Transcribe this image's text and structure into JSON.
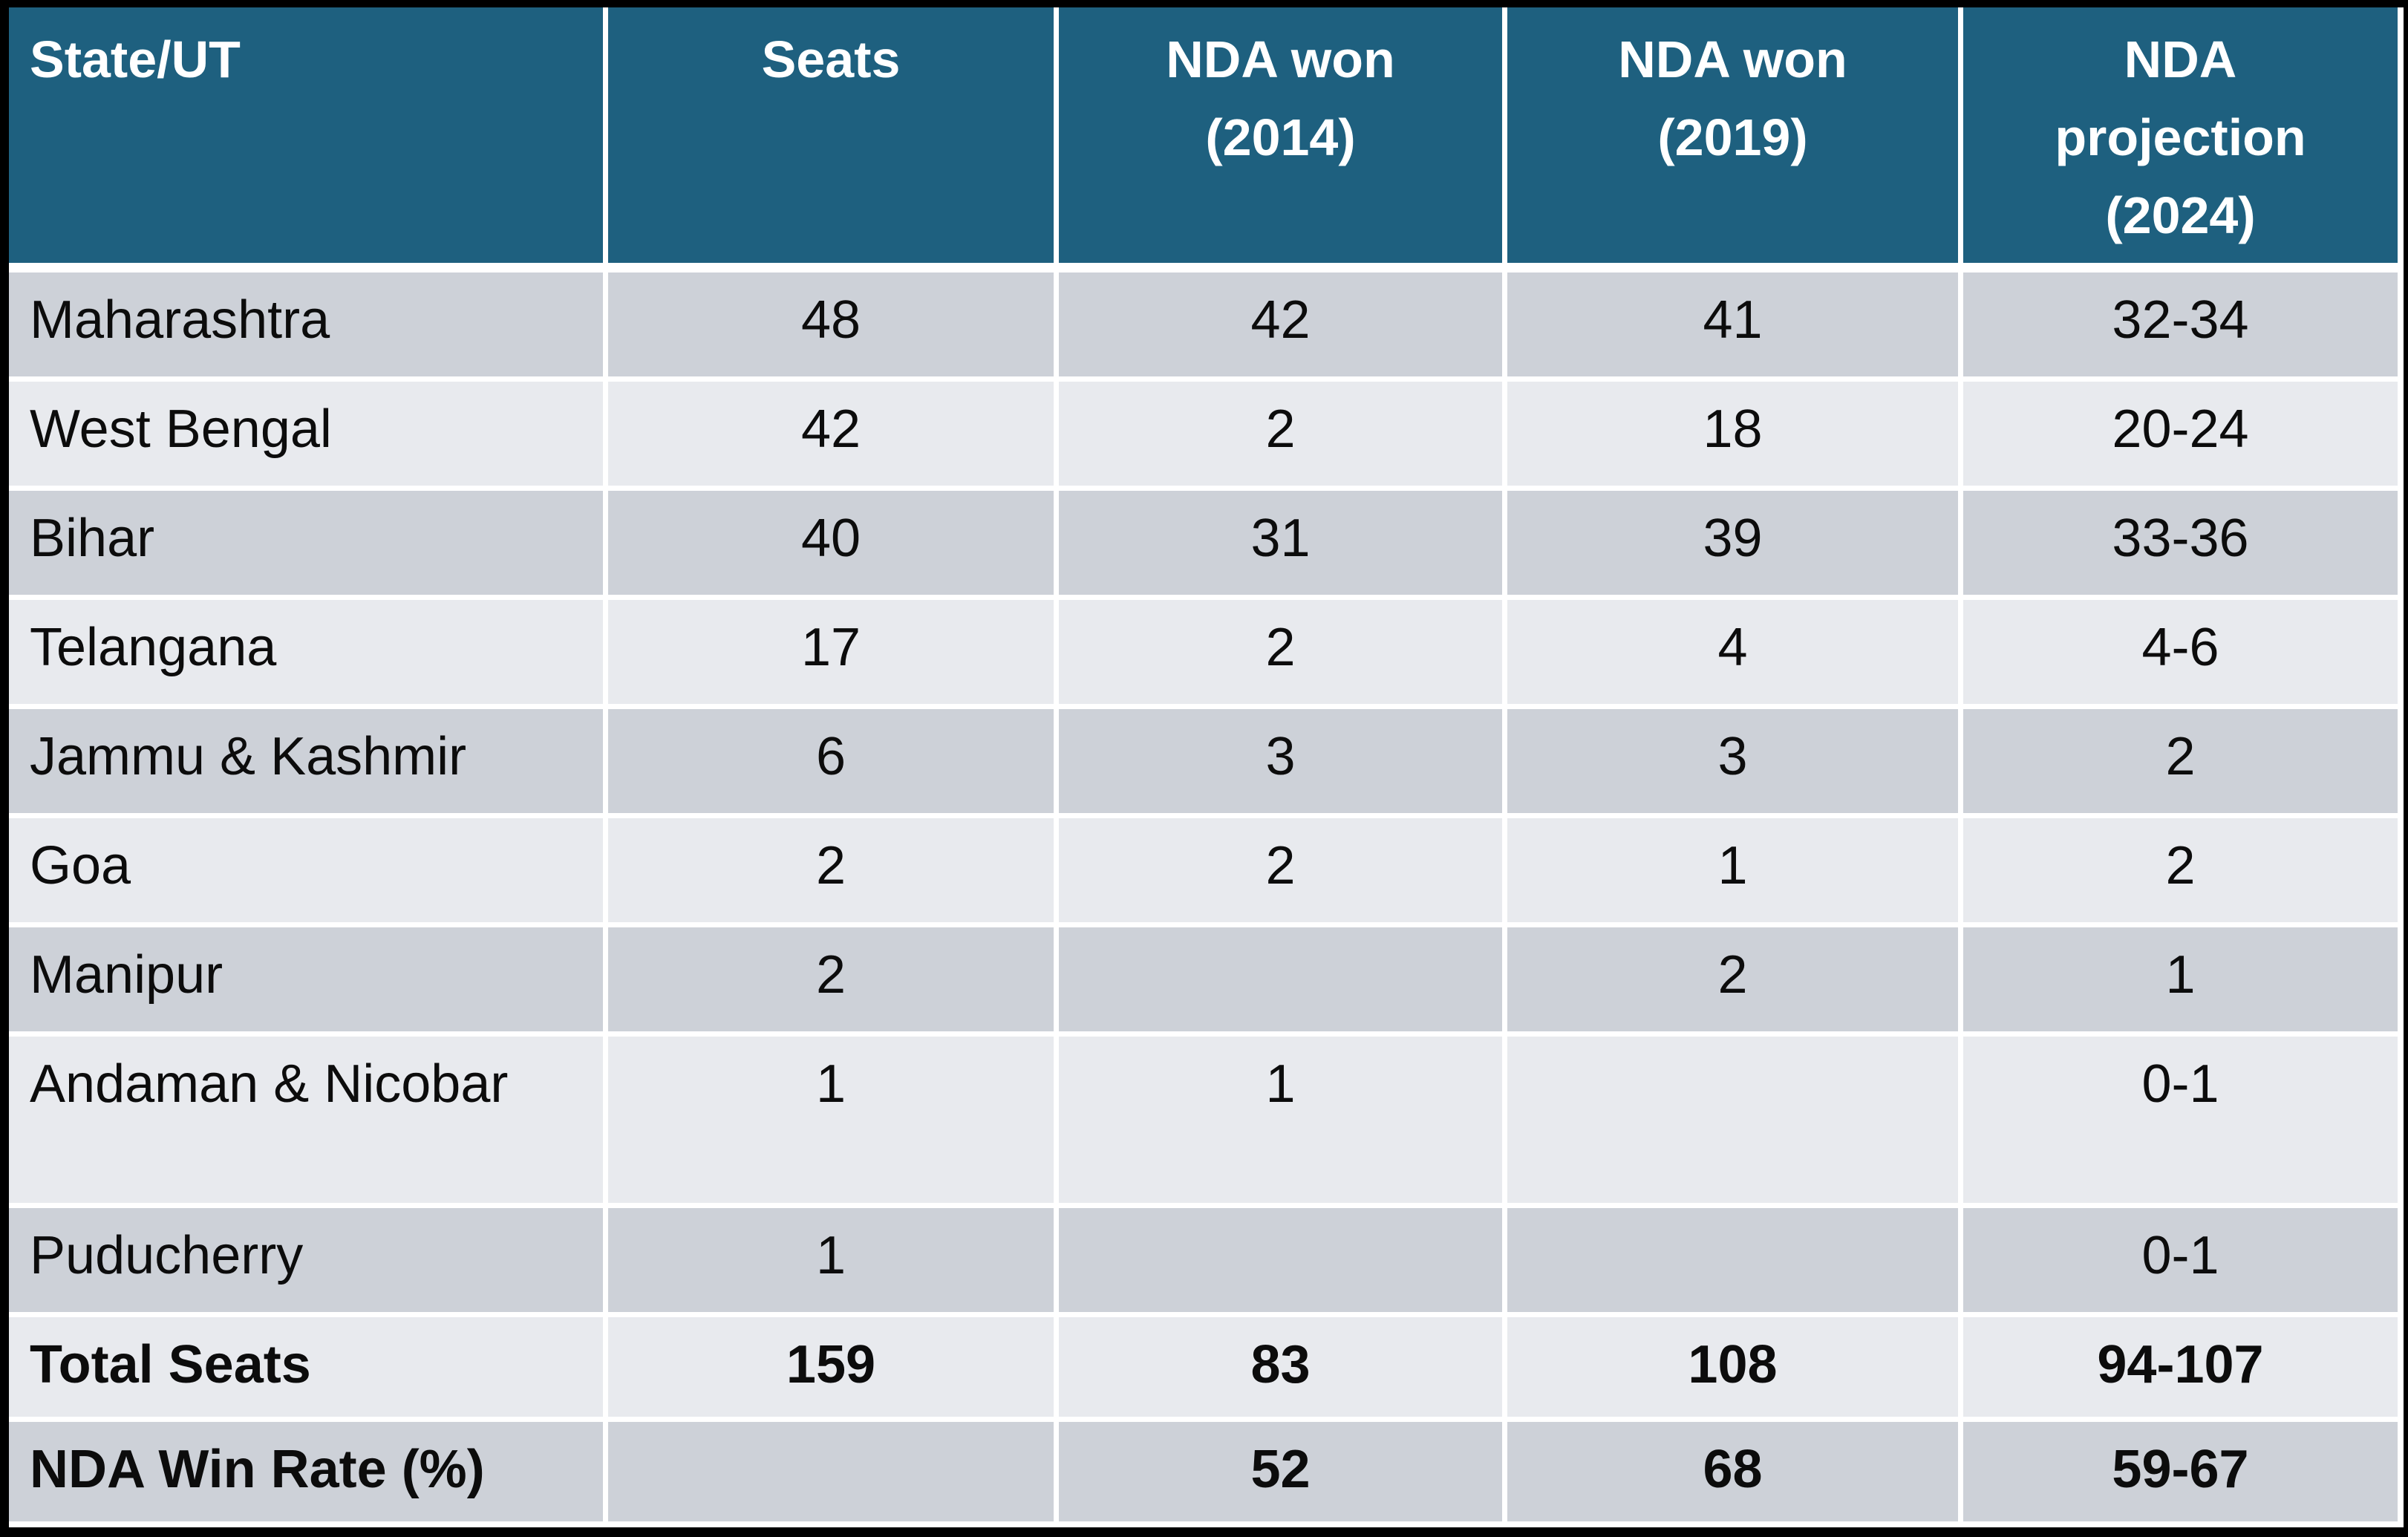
{
  "theme": {
    "header_bg": "#1E607F",
    "row_dark": "#CDD1D8",
    "row_light": "#E8EAEE",
    "header_text": "#FFFFFF",
    "body_text": "#0C0C0C",
    "divider": "#FFFFFF",
    "background": "#000000"
  },
  "table": {
    "header": [
      "State/UT",
      "Seats",
      "NDA won\n(2014)",
      "NDA won\n(2019)",
      "NDA\nprojection\n(2024)"
    ],
    "rows": [
      {
        "cells": [
          "Maharashtra",
          "48",
          "42",
          "41",
          "32-34"
        ]
      },
      {
        "cells": [
          "West Bengal",
          "42",
          "2",
          "18",
          "20-24"
        ]
      },
      {
        "cells": [
          "Bihar",
          "40",
          "31",
          "39",
          "33-36"
        ]
      },
      {
        "cells": [
          "Telangana",
          "17",
          "2",
          "4",
          "4-6"
        ]
      },
      {
        "cells": [
          "Jammu & Kashmir",
          "6",
          "3",
          "3",
          "2"
        ]
      },
      {
        "cells": [
          "Goa",
          "2",
          "2",
          "1",
          "2"
        ]
      },
      {
        "cells": [
          "Manipur",
          "2",
          "",
          "2",
          "1"
        ]
      },
      {
        "cells": [
          "Andaman & Nicobar",
          "1",
          "1",
          "",
          "0-1"
        ]
      },
      {
        "cells": [
          "Puducherry",
          "1",
          "",
          "",
          "0-1"
        ]
      },
      {
        "cells": [
          "Total Seats",
          "159",
          "83",
          "108",
          "94-107"
        ]
      },
      {
        "cells": [
          "NDA Win Rate (%)",
          "",
          "52",
          "68",
          "59-67"
        ]
      }
    ]
  }
}
